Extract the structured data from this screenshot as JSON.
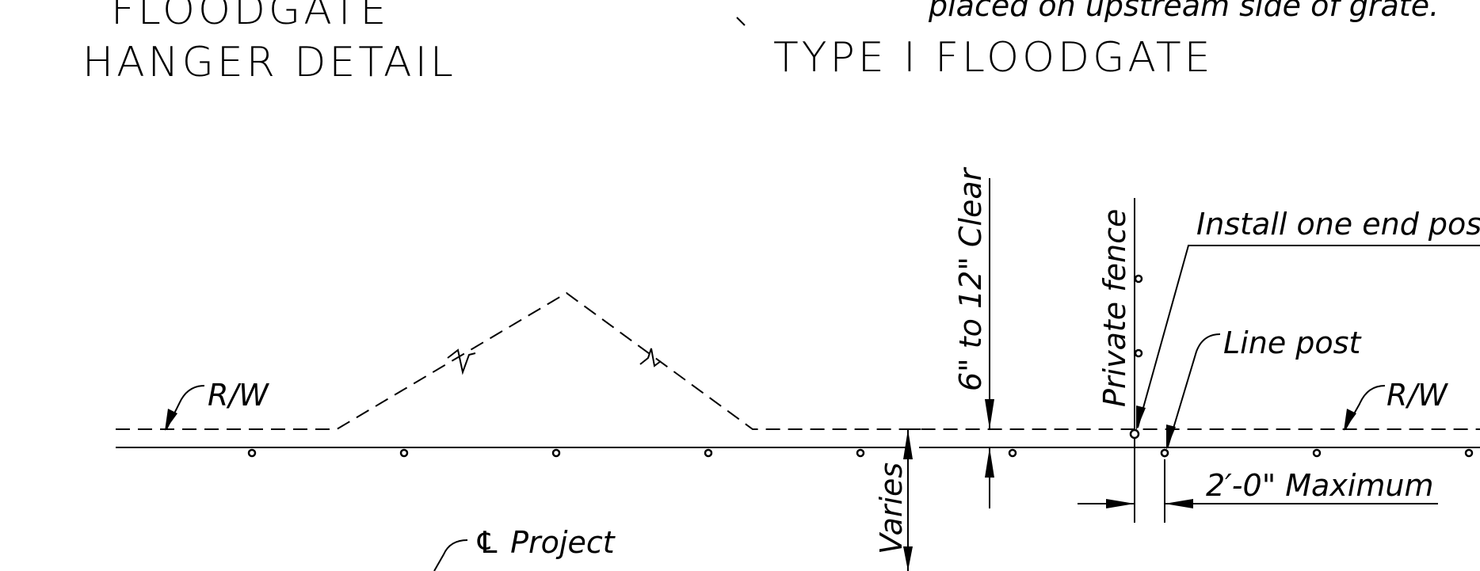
{
  "titles": {
    "hanger_line1": "FLOODGATE",
    "hanger_line2": "HANGER DETAIL",
    "type_title": "TYPE I FLOODGATE",
    "top_note": "placed on upstream side of grate."
  },
  "labels": {
    "rw_left": "R/W",
    "rw_right": "R/W",
    "clearance": "6\" to 12\" Clear",
    "private_fence": "Private fence",
    "install_end_post": "Install one end pos",
    "line_post": "Line post",
    "max_spacing": "2′-0\" Maximum",
    "varies": "Varies",
    "project_cl": "℄ Project"
  }
}
